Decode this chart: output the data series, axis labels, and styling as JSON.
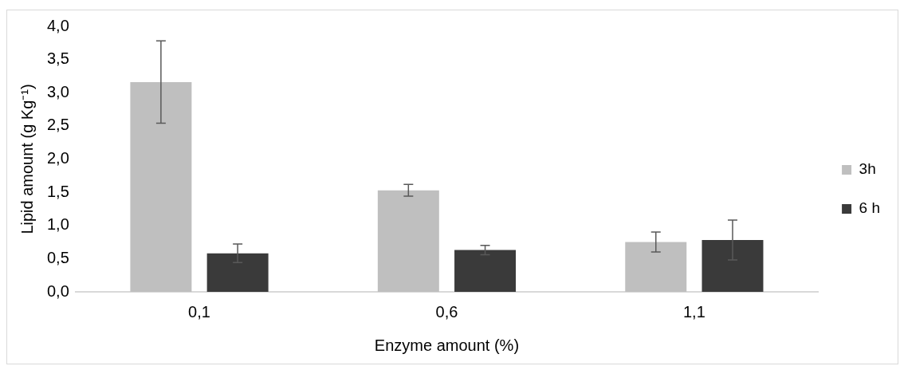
{
  "chart_data": {
    "type": "bar",
    "xlabel": "Enzyme amount (%)",
    "ylabel": "Lipid amount (g Kg⁻¹)",
    "categories": [
      "0,1",
      "0,6",
      "1,1"
    ],
    "series": [
      {
        "name": "3h",
        "color": "#bfbfbf",
        "values": [
          3.16,
          1.53,
          0.75
        ],
        "errors": [
          0.62,
          0.09,
          0.15
        ]
      },
      {
        "name": "6 h",
        "color": "#3a3a3a",
        "values": [
          0.58,
          0.63,
          0.78
        ],
        "errors": [
          0.14,
          0.07,
          0.3
        ]
      }
    ],
    "ylim": [
      0,
      4
    ],
    "yticks": [
      {
        "value": 0,
        "label": "0,0"
      },
      {
        "value": 0.5,
        "label": "0,5"
      },
      {
        "value": 1,
        "label": "1,0"
      },
      {
        "value": 1.5,
        "label": "1,5"
      },
      {
        "value": 2,
        "label": "2,0"
      },
      {
        "value": 2.5,
        "label": "2,5"
      },
      {
        "value": 3,
        "label": "3,0"
      },
      {
        "value": 3.5,
        "label": "3,5"
      },
      {
        "value": 4,
        "label": "4,0"
      }
    ],
    "grid": false,
    "legend": "right"
  }
}
